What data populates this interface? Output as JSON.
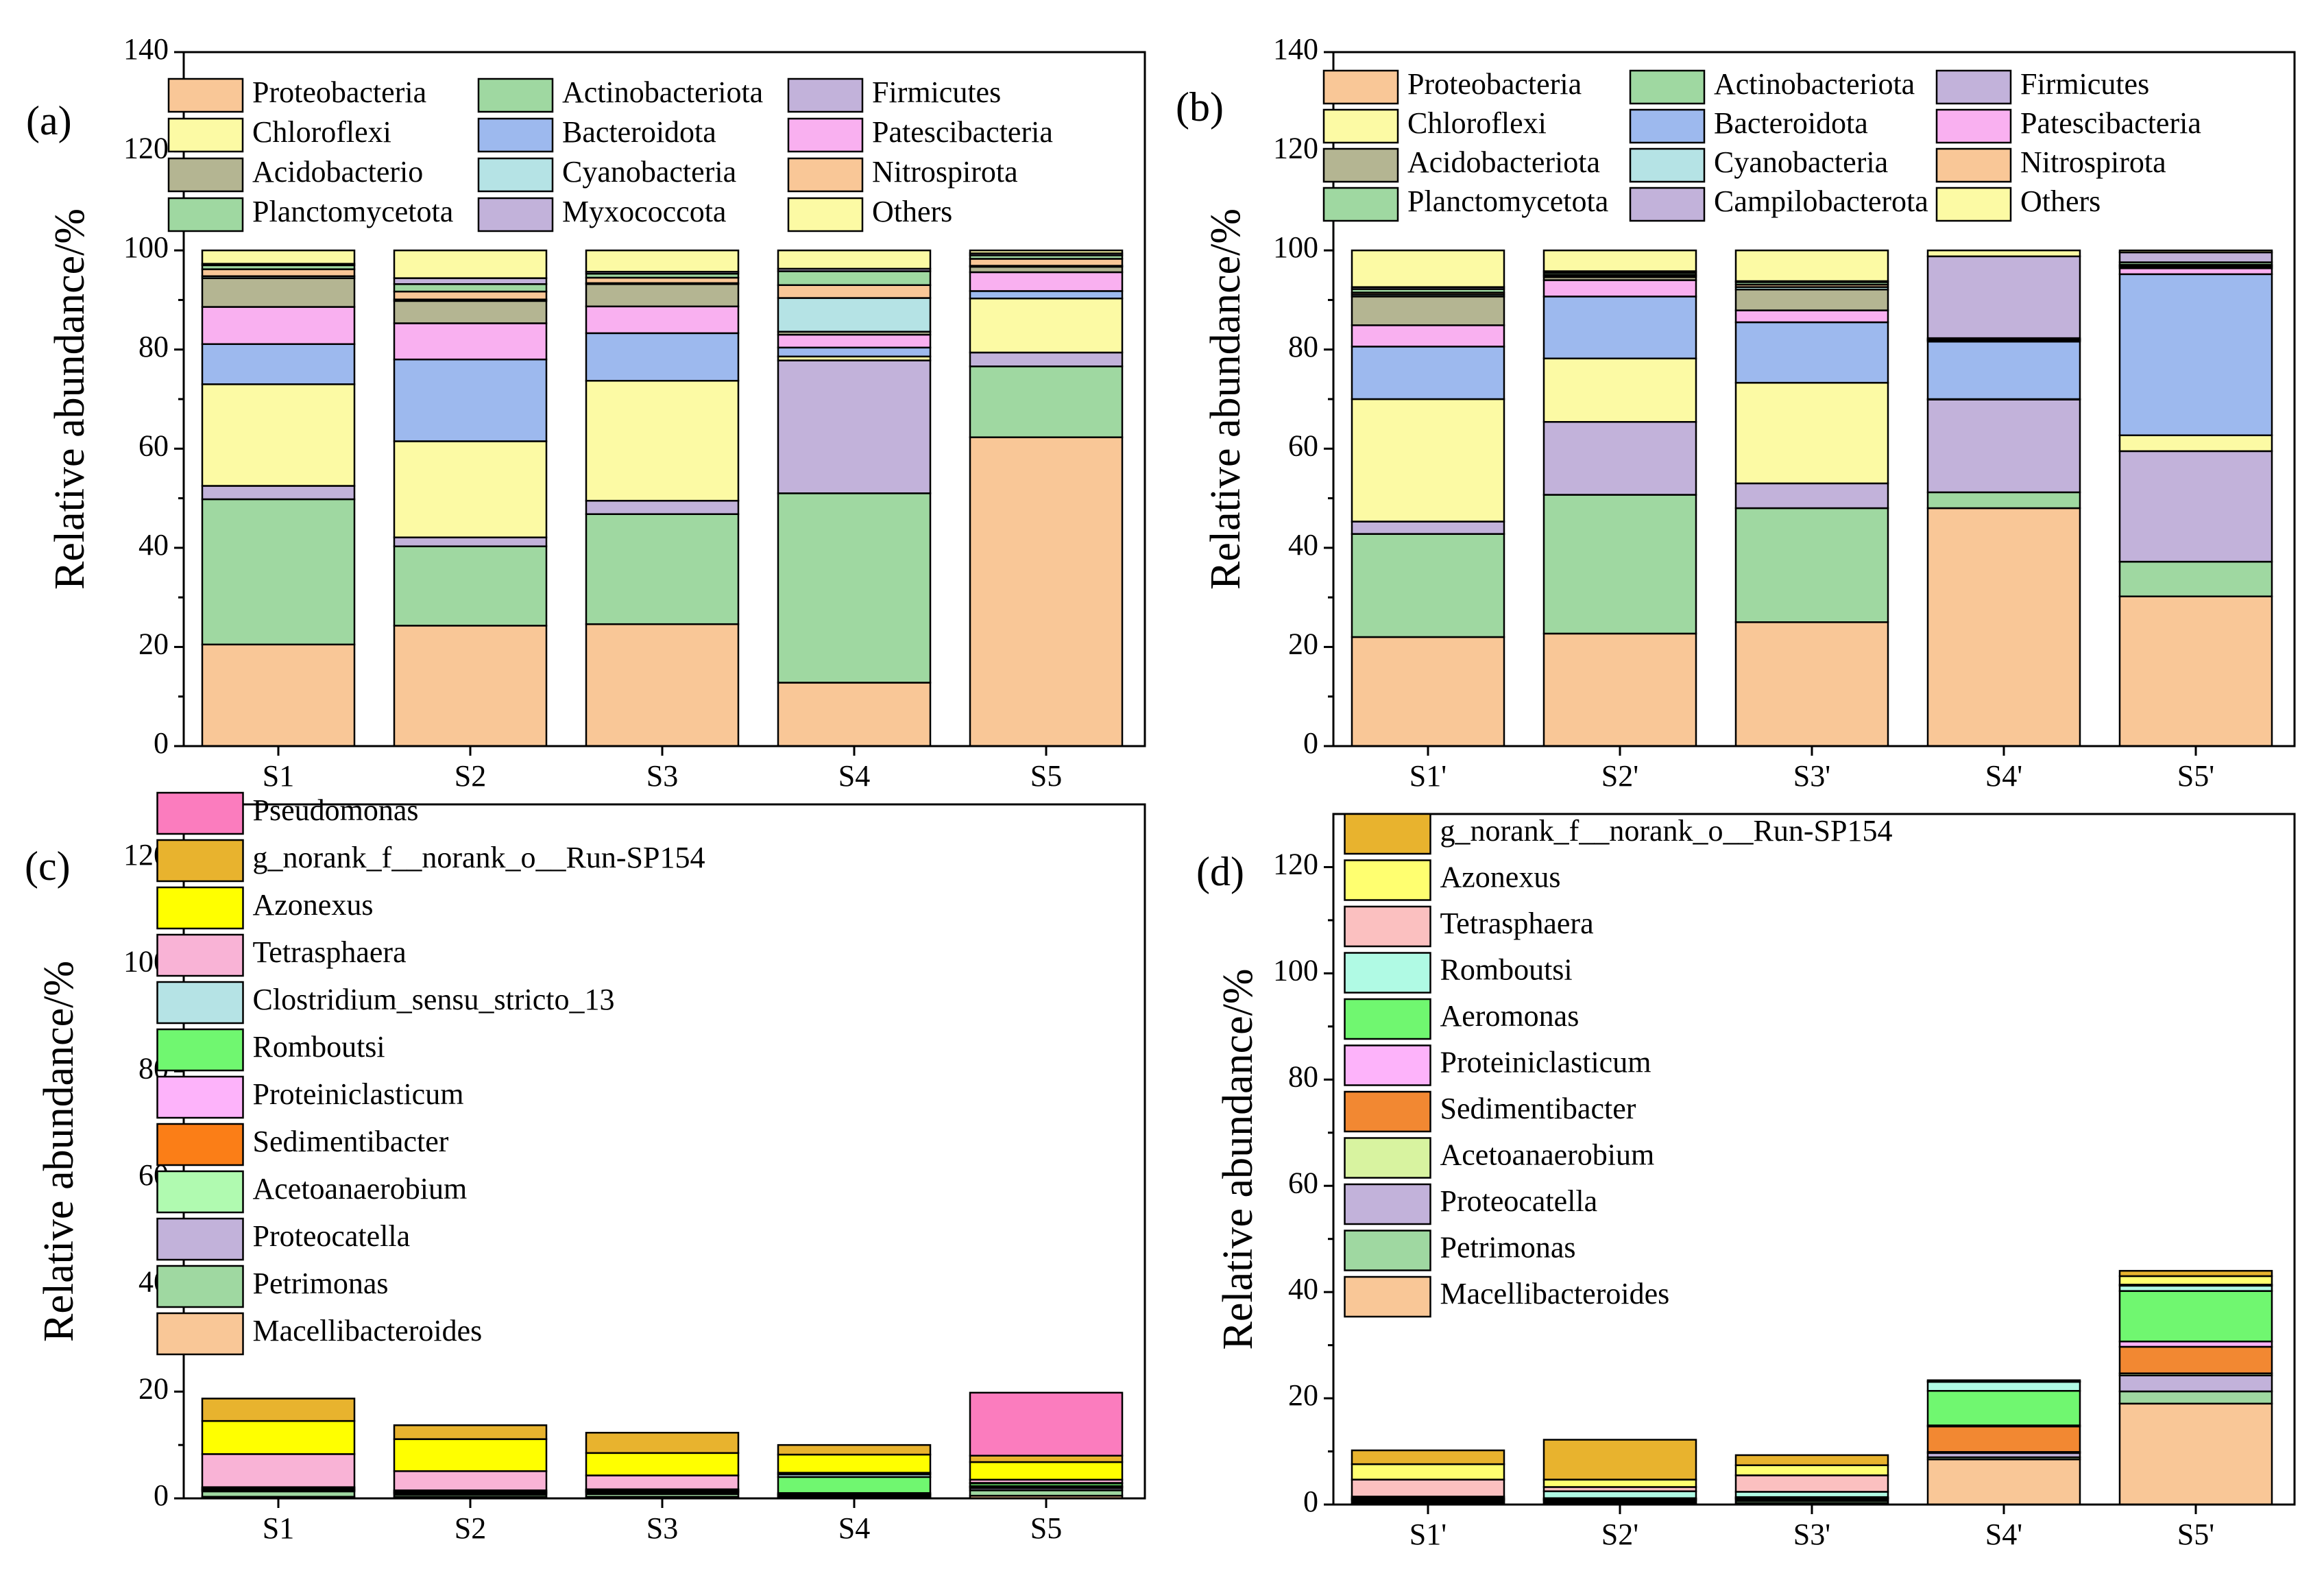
{
  "chart_data": [
    {
      "id": "a",
      "type": "bar",
      "stacked": true,
      "panel_label": "(a)",
      "ylabel": "Relative abundance/%",
      "ylim": [
        0,
        140
      ],
      "yticks": [
        0,
        20,
        40,
        60,
        80,
        100,
        120,
        140
      ],
      "categories": [
        "S1",
        "S2",
        "S3",
        "S4",
        "S5"
      ],
      "legend_position": "top",
      "legend_columns": 3,
      "series": [
        {
          "name": "Proteobacteria",
          "color": "#F9C797",
          "values": [
            20.5,
            24.3,
            24.6,
            12.8,
            62.3
          ]
        },
        {
          "name": "Actinobacteriota",
          "color": "#9FD8A1",
          "values": [
            29.3,
            16.0,
            22.2,
            38.2,
            14.3
          ]
        },
        {
          "name": "Firmicutes",
          "color": "#C2B2DA",
          "values": [
            2.7,
            1.8,
            2.7,
            26.8,
            2.8
          ]
        },
        {
          "name": "Chloroflexi",
          "color": "#FCFAA4",
          "values": [
            20.5,
            19.4,
            24.2,
            0.8,
            10.9
          ]
        },
        {
          "name": "Bacteroidota",
          "color": "#9DB9EE",
          "values": [
            8.1,
            16.5,
            9.6,
            1.8,
            1.5
          ]
        },
        {
          "name": "Patescibacteria",
          "color": "#F9B0F0",
          "values": [
            7.5,
            7.3,
            5.4,
            2.6,
            3.8
          ]
        },
        {
          "name": "Acidobacterio",
          "color": "#B4B592",
          "values": [
            5.8,
            4.5,
            4.5,
            0.6,
            1.1
          ]
        },
        {
          "name": "Cyanobacteria",
          "color": "#B5E3E5",
          "values": [
            0.4,
            0.3,
            0.2,
            6.8,
            0.2
          ]
        },
        {
          "name": "Nitrospirota",
          "color": "#F9C797",
          "values": [
            1.4,
            1.6,
            1.1,
            2.6,
            1.4
          ]
        },
        {
          "name": "Planctomycetota",
          "color": "#9FD8A1",
          "values": [
            0.8,
            1.5,
            0.8,
            2.8,
            0.7
          ]
        },
        {
          "name": "Myxococcota",
          "color": "#C2B2DA",
          "values": [
            0.3,
            1.2,
            0.4,
            0.5,
            0.4
          ]
        },
        {
          "name": "Others",
          "color": "#FCFAA4",
          "values": [
            2.7,
            5.6,
            4.3,
            3.7,
            0.6
          ]
        }
      ]
    },
    {
      "id": "b",
      "type": "bar",
      "stacked": true,
      "panel_label": "(b)",
      "ylabel": "Relative abundance/%",
      "ylim": [
        0,
        140
      ],
      "yticks": [
        0,
        20,
        40,
        60,
        80,
        100,
        120,
        140
      ],
      "categories": [
        "S1'",
        "S2'",
        "S3'",
        "S4'",
        "S5'"
      ],
      "legend_position": "top",
      "legend_columns": 3,
      "series": [
        {
          "name": "Proteobacteria",
          "color": "#F9C797",
          "values": [
            22.0,
            22.7,
            25.0,
            48.0,
            30.2
          ]
        },
        {
          "name": "Actinobacteriota",
          "color": "#9FD8A1",
          "values": [
            20.8,
            28.0,
            23.0,
            3.2,
            7.0
          ]
        },
        {
          "name": "Firmicutes",
          "color": "#C2B2DA",
          "values": [
            2.5,
            14.7,
            5.0,
            18.7,
            22.3
          ]
        },
        {
          "name": "Chloroflexi",
          "color": "#FCFAA4",
          "values": [
            24.7,
            12.8,
            20.3,
            0.1,
            3.2
          ]
        },
        {
          "name": "Bacteroidota",
          "color": "#9DB9EE",
          "values": [
            10.6,
            12.5,
            12.2,
            11.6,
            32.5
          ]
        },
        {
          "name": "Patescibacteria",
          "color": "#F9B0F0",
          "values": [
            4.3,
            3.3,
            2.4,
            0.2,
            1.2
          ]
        },
        {
          "name": "Acidobacteriota",
          "color": "#B4B592",
          "values": [
            5.8,
            0.6,
            4.2,
            0.1,
            0.3
          ]
        },
        {
          "name": "Cyanobacteria",
          "color": "#B5E3E5",
          "values": [
            0.4,
            0.3,
            0.5,
            0.1,
            0.2
          ]
        },
        {
          "name": "Nitrospirota",
          "color": "#F9C797",
          "values": [
            0.4,
            0.2,
            0.5,
            0.1,
            0.2
          ]
        },
        {
          "name": "Planctomycetota",
          "color": "#9FD8A1",
          "values": [
            0.7,
            0.4,
            0.5,
            0.2,
            0.5
          ]
        },
        {
          "name": "Campilobacterota",
          "color": "#C2B2DA",
          "values": [
            0.4,
            0.3,
            0.2,
            16.5,
            2.0
          ]
        },
        {
          "name": "Others",
          "color": "#FCFAA4",
          "values": [
            7.4,
            4.2,
            6.2,
            1.2,
            0.4
          ]
        }
      ]
    },
    {
      "id": "c",
      "type": "bar",
      "stacked": true,
      "panel_label": "(c)",
      "ylabel": "Relative abundance/%",
      "ylim": [
        0,
        130
      ],
      "yticks": [
        0,
        20,
        40,
        60,
        80,
        100,
        120
      ],
      "categories": [
        "S1",
        "S2",
        "S3",
        "S4",
        "S5"
      ],
      "legend_position": "top-left",
      "legend_columns": 1,
      "series": [
        {
          "name": "Macellibacteroides",
          "color": "#F9C797",
          "values": [
            0.3,
            0.3,
            0.3,
            0.2,
            0.5
          ]
        },
        {
          "name": "Petrimonas",
          "color": "#9FD8A1",
          "values": [
            1.0,
            0.4,
            0.5,
            0.2,
            1.0
          ]
        },
        {
          "name": "Proteocatella",
          "color": "#C2B2DA",
          "values": [
            0.2,
            0.2,
            0.3,
            0.2,
            0.4
          ]
        },
        {
          "name": "Acetoanaerobium",
          "color": "#B0FAB0",
          "values": [
            0.1,
            0.1,
            0.1,
            0.1,
            0.2
          ]
        },
        {
          "name": "Sedimentibacter",
          "color": "#FB7E17",
          "values": [
            0.1,
            0.1,
            0.1,
            0.1,
            0.1
          ]
        },
        {
          "name": "Proteiniclasticum",
          "color": "#FDB3FA",
          "values": [
            0.1,
            0.1,
            0.1,
            0.2,
            0.1
          ]
        },
        {
          "name": "Romboutsi",
          "color": "#70F770",
          "values": [
            0.2,
            0.2,
            0.2,
            3.0,
            0.5
          ]
        },
        {
          "name": "Clostridium_sensu_stricto_13",
          "color": "#B5E3E5",
          "values": [
            0.1,
            0.1,
            0.1,
            0.5,
            0.1
          ]
        },
        {
          "name": "Tetrasphaera",
          "color": "#F9B3D6",
          "values": [
            6.2,
            3.6,
            2.6,
            0.3,
            0.6
          ]
        },
        {
          "name": "Azonexus",
          "color": "#FFFF00",
          "values": [
            6.2,
            6.0,
            4.2,
            3.4,
            3.3
          ]
        },
        {
          "name": "g_norank_f__norank_o__Run-SP154",
          "color": "#E8B32E",
          "values": [
            4.2,
            2.6,
            3.8,
            1.8,
            1.2
          ]
        },
        {
          "name": "Pseudomonas",
          "color": "#FB7CBE",
          "values": [
            0.0,
            0.0,
            0.0,
            0.0,
            11.8
          ]
        }
      ]
    },
    {
      "id": "d",
      "type": "bar",
      "stacked": true,
      "panel_label": "(d)",
      "ylabel": "Relative abundance/%",
      "ylim": [
        0,
        130
      ],
      "yticks": [
        0,
        20,
        40,
        60,
        80,
        100,
        120
      ],
      "categories": [
        "S1'",
        "S2'",
        "S3'",
        "S4'",
        "S5'"
      ],
      "legend_position": "top-left",
      "legend_columns": 1,
      "series": [
        {
          "name": "Macellibacteroides",
          "color": "#F9C797",
          "values": [
            0.3,
            0.3,
            0.3,
            8.5,
            19.0
          ]
        },
        {
          "name": "Petrimonas",
          "color": "#9FD8A1",
          "values": [
            0.3,
            0.3,
            0.4,
            0.4,
            2.3
          ]
        },
        {
          "name": "Proteocatella",
          "color": "#C2B2DA",
          "values": [
            0.2,
            0.2,
            0.3,
            0.8,
            3.0
          ]
        },
        {
          "name": "Acetoanaerobium",
          "color": "#D8F3A0",
          "values": [
            0.1,
            0.1,
            0.1,
            0.2,
            0.4
          ]
        },
        {
          "name": "Sedimentibacter",
          "color": "#F28832",
          "values": [
            0.1,
            0.1,
            0.1,
            4.8,
            5.0
          ]
        },
        {
          "name": "Proteiniclasticum",
          "color": "#FDB3FA",
          "values": [
            0.1,
            0.1,
            0.1,
            0.2,
            1.0
          ]
        },
        {
          "name": "Aeromonas",
          "color": "#70F770",
          "values": [
            0.1,
            0.1,
            0.1,
            6.5,
            9.5
          ]
        },
        {
          "name": "Romboutsi",
          "color": "#B0FAE4",
          "values": [
            0.3,
            1.3,
            1.0,
            1.7,
            1.0
          ]
        },
        {
          "name": "Tetrasphaera",
          "color": "#FBC0C0",
          "values": [
            3.2,
            0.8,
            3.1,
            0.1,
            0.2
          ]
        },
        {
          "name": "Azonexus",
          "color": "#FFFF70",
          "values": [
            2.9,
            1.4,
            1.9,
            0.0,
            1.6
          ]
        },
        {
          "name": "g_norank_f__norank_o__Run-SP154",
          "color": "#E8B32E",
          "values": [
            2.6,
            7.5,
            1.9,
            0.2,
            1.0
          ]
        }
      ]
    }
  ]
}
